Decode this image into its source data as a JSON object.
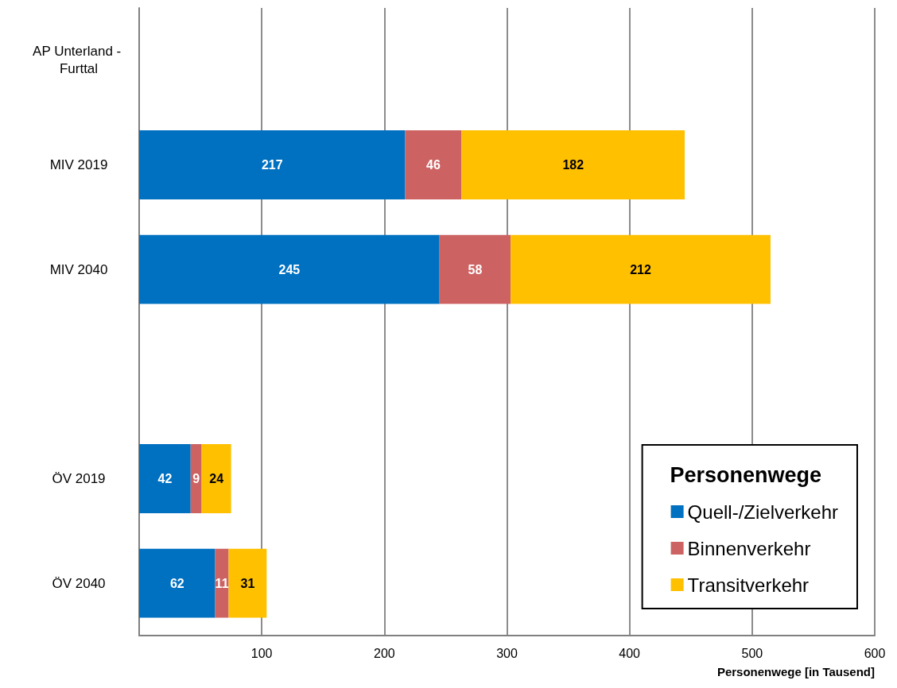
{
  "chart_data": {
    "type": "bar",
    "orientation": "horizontal",
    "stacked": true,
    "xlabel": "Personenwege [in Tausend]",
    "legend_title": "Personenwege",
    "categories": [
      "AP Unterland - Furttal",
      "MIV 2019",
      "MIV 2040",
      null,
      "ÖV 2019",
      "ÖV 2040"
    ],
    "series": [
      {
        "name": "Quell-/Zielverkehr",
        "color": "#0070c0",
        "values": [
          null,
          217,
          245,
          null,
          42,
          62
        ]
      },
      {
        "name": "Binnenverkehr",
        "color": "#cd6262",
        "values": [
          null,
          46,
          58,
          null,
          9,
          11
        ]
      },
      {
        "name": "Transitverkehr",
        "color": "#ffc000",
        "values": [
          null,
          182,
          212,
          null,
          24,
          31
        ]
      }
    ],
    "xlim": [
      0,
      600
    ],
    "xticks": [
      {
        "value": 0,
        "label": null
      },
      100,
      200,
      300,
      400,
      500,
      600
    ],
    "grid": "x",
    "legend": "bottom right",
    "data_labels": true
  }
}
